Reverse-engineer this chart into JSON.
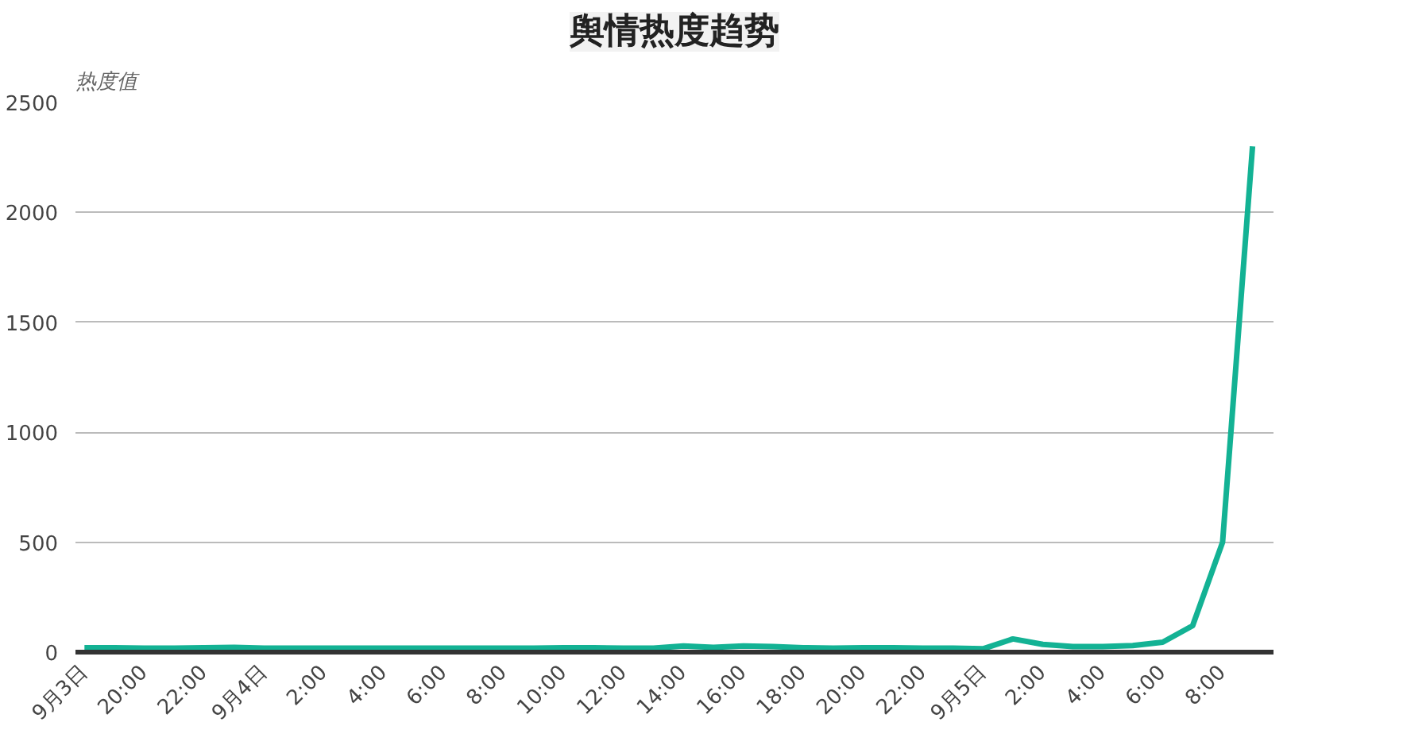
{
  "chart_data": {
    "type": "line",
    "title": "舆情热度趋势",
    "ylabel": "热度值",
    "categories": [
      "9月3日",
      null,
      "20:00",
      null,
      "22:00",
      null,
      "9月4日",
      null,
      "2:00",
      null,
      "4:00",
      null,
      "6:00",
      null,
      "8:00",
      null,
      "10:00",
      null,
      "12:00",
      null,
      "14:00",
      null,
      "16:00",
      null,
      "18:00",
      null,
      "20:00",
      null,
      "22:00",
      null,
      "9月5日",
      null,
      "2:00",
      null,
      "4:00",
      null,
      "6:00",
      null,
      "8:00",
      null
    ],
    "series": [
      {
        "color": "#13b294",
        "values": [
          20,
          20,
          18,
          18,
          20,
          22,
          18,
          18,
          18,
          18,
          18,
          18,
          18,
          18,
          18,
          18,
          20,
          20,
          18,
          18,
          28,
          22,
          28,
          25,
          20,
          18,
          20,
          20,
          18,
          18,
          15,
          60,
          35,
          25,
          25,
          30,
          45,
          120,
          500,
          2300
        ]
      }
    ],
    "ylim": [
      0,
      2500
    ],
    "yticks": [
      0,
      500,
      1000,
      1500,
      2000,
      2500
    ],
    "grid": "y",
    "marker": "none",
    "line_style": "solid"
  }
}
